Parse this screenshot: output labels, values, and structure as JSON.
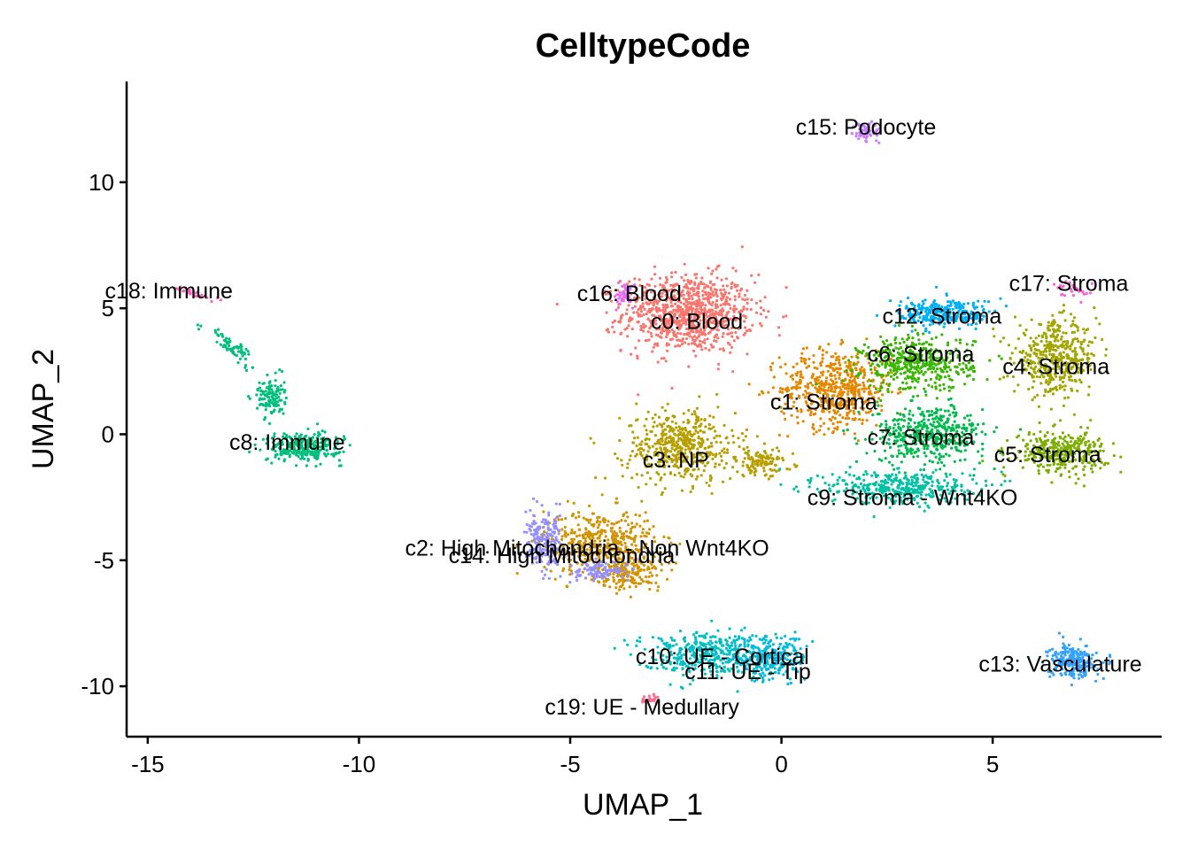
{
  "chart_data": {
    "type": "scatter",
    "title": "CelltypeCode",
    "xlabel": "UMAP_1",
    "ylabel": "UMAP_2",
    "xlim": [
      -15.5,
      9
    ],
    "ylim": [
      -12,
      14
    ],
    "xticks": [
      -15,
      -10,
      -5,
      0,
      5
    ],
    "yticks": [
      -10,
      -5,
      0,
      5,
      10
    ],
    "grid": false,
    "legend": "none",
    "clusters": [
      {
        "id": "c0",
        "label": "c0: Blood",
        "color": "#F8766D",
        "label_pos": [
          -2.0,
          4.5
        ],
        "blobs": [
          {
            "center": [
              -2.2,
              4.8
            ],
            "spread": [
              1.4,
              1.4
            ],
            "n": 900,
            "rot": 0
          }
        ]
      },
      {
        "id": "c1",
        "label": "c1: Stroma",
        "color": "#E58700",
        "label_pos": [
          1.0,
          1.3
        ],
        "blobs": [
          {
            "center": [
              1.3,
              1.8
            ],
            "spread": [
              1.2,
              1.4
            ],
            "n": 550,
            "rot": 0
          }
        ]
      },
      {
        "id": "c2",
        "label": "c2: High Mitochondria - Non Wnt4KO",
        "color": "#D39200",
        "label_pos": [
          -4.6,
          -4.5
        ],
        "blobs": [
          {
            "center": [
              -4.3,
              -4.3
            ],
            "spread": [
              1.2,
              1.2
            ],
            "n": 450,
            "rot": 0
          },
          {
            "center": [
              -3.6,
              -5.5
            ],
            "spread": [
              0.7,
              0.6
            ],
            "n": 150,
            "rot": 0
          }
        ]
      },
      {
        "id": "c3",
        "label": "c3: NP",
        "color": "#B79F00",
        "label_pos": [
          -2.5,
          -1.0
        ],
        "blobs": [
          {
            "center": [
              -2.4,
              -0.5
            ],
            "spread": [
              1.2,
              1.3
            ],
            "n": 500,
            "rot": 0
          },
          {
            "center": [
              -0.5,
              -1.1
            ],
            "spread": [
              0.7,
              0.5
            ],
            "n": 120,
            "rot": 0
          }
        ]
      },
      {
        "id": "c4",
        "label": "c4: Stroma",
        "color": "#A3A500",
        "label_pos": [
          6.5,
          2.7
        ],
        "blobs": [
          {
            "center": [
              6.5,
              3.0
            ],
            "spread": [
              0.9,
              1.3
            ],
            "n": 450,
            "rot": 0
          }
        ]
      },
      {
        "id": "c5",
        "label": "c5: Stroma",
        "color": "#7CAE00",
        "label_pos": [
          6.3,
          -0.8
        ],
        "blobs": [
          {
            "center": [
              6.6,
              -0.7
            ],
            "spread": [
              1.0,
              0.7
            ],
            "n": 350,
            "rot": 0
          }
        ]
      },
      {
        "id": "c6",
        "label": "c6: Stroma",
        "color": "#39B600",
        "label_pos": [
          3.3,
          3.2
        ],
        "blobs": [
          {
            "center": [
              3.2,
              2.8
            ],
            "spread": [
              1.2,
              1.0
            ],
            "n": 450,
            "rot": 0
          }
        ]
      },
      {
        "id": "c7",
        "label": "c7: Stroma",
        "color": "#00BB4E",
        "label_pos": [
          3.3,
          -0.1
        ],
        "blobs": [
          {
            "center": [
              3.5,
              0.0
            ],
            "spread": [
              1.2,
              1.0
            ],
            "n": 450,
            "rot": 0
          }
        ]
      },
      {
        "id": "c8",
        "label": "c8: Immune",
        "color": "#00BF7D",
        "label_pos": [
          -11.7,
          -0.3
        ],
        "blobs": [
          {
            "center": [
              -11.3,
              -0.5
            ],
            "spread": [
              0.8,
              0.5
            ],
            "n": 300,
            "rot": 0
          },
          {
            "center": [
              -12.1,
              1.5
            ],
            "spread": [
              0.3,
              0.7
            ],
            "n": 120,
            "rot": 0
          },
          {
            "center": [
              -13.0,
              3.5
            ],
            "spread": [
              0.2,
              0.9
            ],
            "n": 70,
            "rot": 0.6
          }
        ]
      },
      {
        "id": "c9",
        "label": "c9: Stroma - Wnt4KO",
        "color": "#00C1A3",
        "label_pos": [
          3.1,
          -2.5
        ],
        "blobs": [
          {
            "center": [
              2.8,
              -2.1
            ],
            "spread": [
              1.6,
              0.6
            ],
            "n": 380,
            "rot": 0
          }
        ]
      },
      {
        "id": "c10",
        "label": "c10: UE - Cortical",
        "color": "#00BFC4",
        "label_pos": [
          -1.4,
          -8.8
        ],
        "blobs": [
          {
            "center": [
              -1.8,
              -8.7
            ],
            "spread": [
              1.4,
              0.8
            ],
            "n": 400,
            "rot": 0
          }
        ]
      },
      {
        "id": "c11",
        "label": "c11: UE - Tip",
        "color": "#00BAE0",
        "label_pos": [
          -0.8,
          -9.4
        ],
        "blobs": [
          {
            "center": [
              -0.3,
              -8.9
            ],
            "spread": [
              0.8,
              0.8
            ],
            "n": 250,
            "rot": 0
          }
        ]
      },
      {
        "id": "c12",
        "label": "c12: Stroma",
        "color": "#00B0F6",
        "label_pos": [
          3.8,
          4.7
        ],
        "blobs": [
          {
            "center": [
              3.9,
              4.8
            ],
            "spread": [
              1.0,
              0.5
            ],
            "n": 300,
            "rot": 0
          }
        ]
      },
      {
        "id": "c13",
        "label": "c13: Vasculature",
        "color": "#35A2FF",
        "label_pos": [
          6.6,
          -9.1
        ],
        "blobs": [
          {
            "center": [
              6.9,
              -9.0
            ],
            "spread": [
              0.5,
              0.6
            ],
            "n": 250,
            "rot": 0
          }
        ]
      },
      {
        "id": "c14",
        "label": "c14: High Mitochondria",
        "color": "#9590FF",
        "label_pos": [
          -5.2,
          -4.8
        ],
        "blobs": [
          {
            "center": [
              -5.6,
              -4.3
            ],
            "spread": [
              0.4,
              1.0
            ],
            "n": 200,
            "rot": 0
          },
          {
            "center": [
              -4.3,
              -5.4
            ],
            "spread": [
              0.6,
              0.4
            ],
            "n": 100,
            "rot": 0
          }
        ]
      },
      {
        "id": "c15",
        "label": "c15: Podocyte",
        "color": "#C77CFF",
        "label_pos": [
          2.0,
          12.2
        ],
        "blobs": [
          {
            "center": [
              2.0,
              12.0
            ],
            "spread": [
              0.3,
              0.3
            ],
            "n": 60,
            "rot": 0.9
          }
        ]
      },
      {
        "id": "c16",
        "label": "c16: Blood",
        "color": "#E76BF3",
        "label_pos": [
          -3.6,
          5.6
        ],
        "blobs": [
          {
            "center": [
              -3.7,
              5.5
            ],
            "spread": [
              0.2,
              0.4
            ],
            "n": 50,
            "rot": 0
          }
        ]
      },
      {
        "id": "c17",
        "label": "c17: Stroma",
        "color": "#FA62DB",
        "label_pos": [
          6.8,
          6.0
        ],
        "blobs": [
          {
            "center": [
              6.9,
              5.7
            ],
            "spread": [
              0.3,
              0.4
            ],
            "n": 30,
            "rot": 0.5
          }
        ]
      },
      {
        "id": "c18",
        "label": "c18: Immune",
        "color": "#FF62BC",
        "label_pos": [
          -14.5,
          5.7
        ],
        "blobs": [
          {
            "center": [
              -13.9,
              5.6
            ],
            "spread": [
              0.4,
              0.1
            ],
            "n": 30,
            "rot": -0.5
          }
        ]
      },
      {
        "id": "c19",
        "label": "c19: UE - Medullary",
        "color": "#FF6C91",
        "label_pos": [
          -3.3,
          -10.8
        ],
        "blobs": [
          {
            "center": [
              -3.1,
              -10.5
            ],
            "spread": [
              0.2,
              0.15
            ],
            "n": 25,
            "rot": 0
          }
        ]
      }
    ]
  }
}
